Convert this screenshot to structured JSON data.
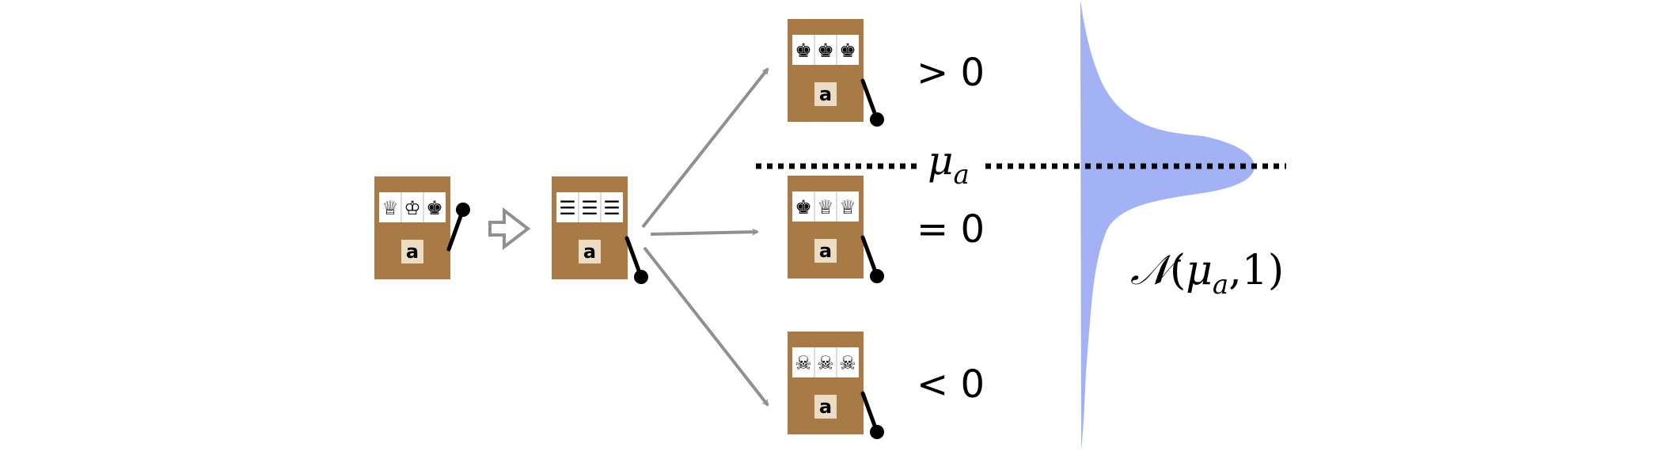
{
  "figure": {
    "arm_label": "a",
    "symbols": {
      "initial": [
        "♕",
        "♔",
        "♚"
      ],
      "spinning": [
        "☰",
        "☰",
        "☰"
      ],
      "win": [
        "♚",
        "♚",
        "♚"
      ],
      "neutral": [
        "♚",
        "♕",
        "♕"
      ],
      "loss": [
        "☠",
        "☠",
        "☠"
      ]
    },
    "outcomes": {
      "positive": "> 0",
      "zero": "= 0",
      "negative": "< 0"
    },
    "mean_label": {
      "symbol": "μ",
      "subscript": "a"
    },
    "distribution_label": {
      "name": "𝒩",
      "open": "(",
      "mu": "μ",
      "subscript": "a",
      "rest": ",1)"
    }
  },
  "colors": {
    "machine_body": "#a87a46",
    "window": "#ffffff",
    "badge": "#ecdcc4",
    "arrow": "#909090",
    "distribution_fill": "#a3b1f5",
    "dotted_line": "#000000"
  },
  "icons": [
    "slot-machine-icon",
    "hollow-arrow-icon",
    "lever-icon"
  ]
}
